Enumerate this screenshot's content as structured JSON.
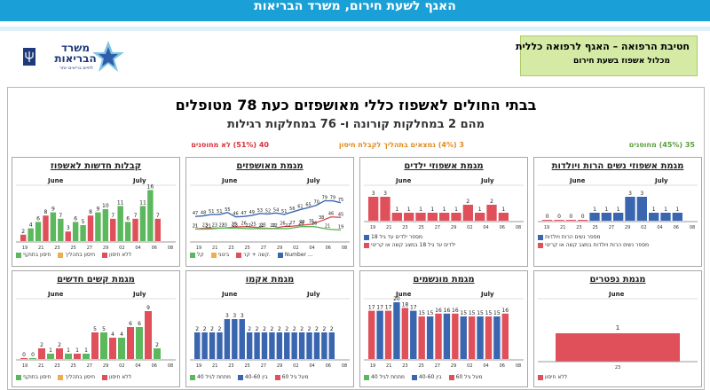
{
  "banner": {
    "title": "האגף לשעת חירום, משרד הבריאות"
  },
  "logo": {
    "name": "משרד הבריאות",
    "tagline": "לחיים בריאים יותר",
    "icon": "ministry-of-health-star-logo"
  },
  "header_box": {
    "line1": "חטיבת הרפואה – האגף לרפואה כללית",
    "line2": "מכלול אשפוז בשעת חירום"
  },
  "summary": {
    "title": "בבתי החולים לאשפוז כללי מאושפזים כעת 78 מטופלים",
    "subtitle": "מהם 2 במחלקות קורונה ו- 76 במחלקות רגילות",
    "stat_critical": "35 (45%) מחוסנים",
    "stat_partial": "3 (4%) נמצאים בתהליך לקבלת חיסון",
    "stat_unvaccinated": "40 (51%) לא מחוסנים"
  },
  "colors": {
    "green": "#5cb85c",
    "orange": "#f0ad4e",
    "red": "#e0505a",
    "blue": "#3a66b0",
    "gray": "#a9a9a9"
  },
  "x_ticks": [
    "19",
    "21",
    "23",
    "25",
    "27",
    "29",
    "02",
    "04",
    "06",
    "08"
  ],
  "ticks_short": [
    "23"
  ],
  "panels": {
    "admissions": {
      "title": "קבלות חדשות לאשפוז",
      "month_june": "June",
      "month_july": "July",
      "legend": [
        "חיסון בתוקף",
        "חיסון בתהליך",
        "ללא חיסון"
      ],
      "labels": [
        "2",
        "4",
        "6",
        "8",
        "9",
        "7",
        "3",
        "6",
        "5",
        "8",
        "9",
        "10",
        "7",
        "11",
        "6",
        "7",
        "11",
        "16",
        "7"
      ]
    },
    "hospitalized": {
      "title": "מגמת מאושפזים",
      "month_june": "June",
      "month_july": "July",
      "legend": [
        "קל",
        "בינוני",
        "קשה + קר.",
        "Number ..."
      ],
      "top_labels": [
        "47",
        "48",
        "51",
        "51",
        "55",
        "46",
        "47",
        "49",
        "53",
        "52",
        "54",
        "51",
        "56",
        "61",
        "65",
        "70",
        "79",
        "79",
        "75"
      ],
      "mid_labels": [
        "21",
        "23",
        "23",
        "23",
        "25",
        "26",
        "25",
        "23",
        "22",
        "26",
        "27",
        "29",
        "31",
        "38",
        "46",
        "45"
      ],
      "low_labels": [
        "21",
        "21",
        "23",
        "23",
        "22",
        "22",
        "22",
        "22",
        "26",
        "26",
        "21",
        "19"
      ]
    },
    "children": {
      "title": "מגמת אשפוזי ילדים",
      "month_june": "June",
      "month_july": "July",
      "legend": [
        "מספר ילדים עד גיל 18",
        "ילדים עד גיל 18 במצב קשה או קריטי"
      ],
      "labels": [
        "3",
        "3",
        "1",
        "1",
        "1",
        "1",
        "1",
        "1",
        "2",
        "1",
        "2",
        "1"
      ]
    },
    "pregnant": {
      "title": "מגמת אשפוזי נשים הרות ויולדות",
      "month_june": "June",
      "month_july": "July",
      "legend": [
        "מספר נשים הרות ויולדות",
        "מספר נשים הרות ויולדות במצב קשה או קריטי"
      ],
      "labels": [
        "0",
        "0",
        "0",
        "0",
        "1",
        "1",
        "1",
        "3",
        "3",
        "1",
        "1",
        "1"
      ]
    },
    "severe": {
      "title": "מגמת קשים חדשים",
      "month_june": "June",
      "month_july": "July",
      "legend": [
        "חיסון בתוקף",
        "חיסון בתהליך",
        "ללא חיסון"
      ],
      "labels": [
        "0",
        "0",
        "2",
        "1",
        "2",
        "1",
        "1",
        "1",
        "5",
        "5",
        "4",
        "4",
        "6",
        "6",
        "9",
        "2"
      ]
    },
    "ecmo": {
      "title": "מגמת אקמו",
      "month_june": "June",
      "month_july": "July",
      "legend": [
        "מתחת לגיל 40",
        "בין 40-60",
        "מעל גיל 60"
      ],
      "labels": [
        "2",
        "2",
        "2",
        "2",
        "3",
        "3",
        "3",
        "2",
        "2",
        "2",
        "2",
        "2",
        "2",
        "2",
        "2",
        "2",
        "2",
        "2",
        "2"
      ]
    },
    "ventilated": {
      "title": "מגמת מונשמים",
      "month_june": "June",
      "month_july": "July",
      "legend": [
        "מתחת לגיל 40",
        "בין 40-60",
        "מעל גיל 60"
      ],
      "labels": [
        "17",
        "17",
        "17",
        "20",
        "18",
        "17",
        "15",
        "15",
        "16",
        "16",
        "16",
        "15",
        "15",
        "15",
        "15",
        "15",
        "16"
      ]
    },
    "deaths": {
      "title": "מגמת נפטרים",
      "month_june": "June",
      "legend": [
        "ללא חיסון"
      ],
      "labels": [
        "1"
      ]
    }
  }
}
